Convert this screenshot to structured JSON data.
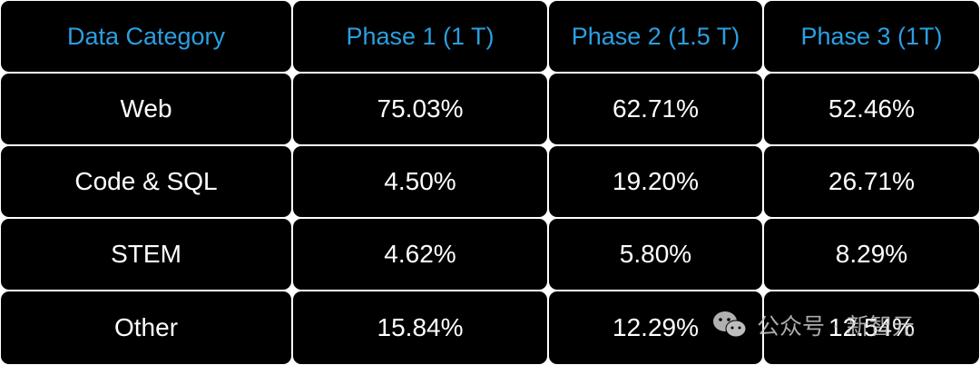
{
  "table": {
    "headers": [
      "Data Category",
      "Phase 1 (1 T)",
      "Phase 2 (1.5 T)",
      "Phase 3 (1T)"
    ],
    "rows": [
      [
        "Web",
        "75.03%",
        "62.71%",
        "52.46%"
      ],
      [
        "Code & SQL",
        "4.50%",
        "19.20%",
        "26.71%"
      ],
      [
        "STEM",
        "4.62%",
        "5.80%",
        "8.29%"
      ],
      [
        "Other",
        "15.84%",
        "12.29%",
        "12.54%"
      ]
    ]
  },
  "watermark": {
    "icon": "wechat-icon",
    "text": "公众号 · 新智元"
  },
  "colors": {
    "header_text": "#2b9fe0",
    "cell_background": "#000000",
    "body_text": "#ffffff"
  }
}
